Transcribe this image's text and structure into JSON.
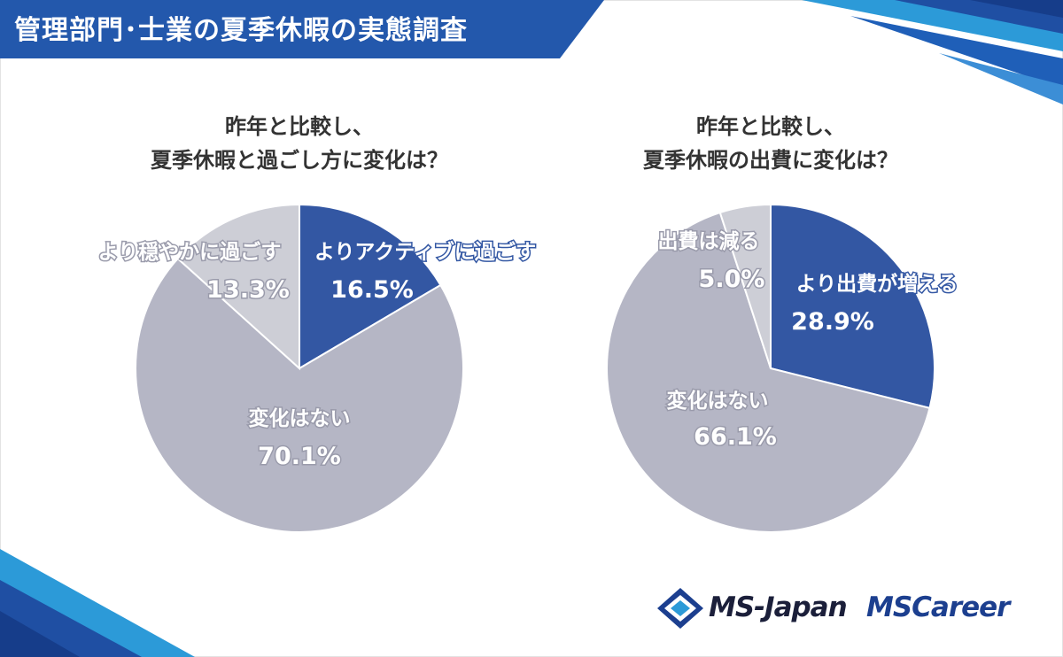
{
  "header": {
    "title": "管理部門･士業の夏季休暇の実態調査"
  },
  "colors": {
    "active": "#3357a3",
    "calm": "#cdced6",
    "none": "#b5b6c5",
    "banner": "#2358ac"
  },
  "chart_data": [
    {
      "type": "pie",
      "title_lines": [
        "昨年と比較し、",
        "夏季休暇と過ごし方に変化は？"
      ],
      "slices": [
        {
          "label": "よりアクティブに過ごす",
          "value": 16.5,
          "display": "16.5%"
        },
        {
          "label": "変化はない",
          "value": 70.1,
          "display": "70.1%"
        },
        {
          "label": "より穏やかに過ごす",
          "value": 13.3,
          "display": "13.3%"
        }
      ]
    },
    {
      "type": "pie",
      "title_lines": [
        "昨年と比較し、",
        "夏季休暇の出費に変化は？"
      ],
      "slices": [
        {
          "label": "より出費が増える",
          "value": 28.9,
          "display": "28.9%"
        },
        {
          "label": "変化はない",
          "value": 66.1,
          "display": "66.1%"
        },
        {
          "label": "出費は減る",
          "value": 5.0,
          "display": "5.0%"
        }
      ]
    }
  ],
  "logos": {
    "ms_japan": "MS-Japan",
    "ms_career": "MSCareer"
  }
}
